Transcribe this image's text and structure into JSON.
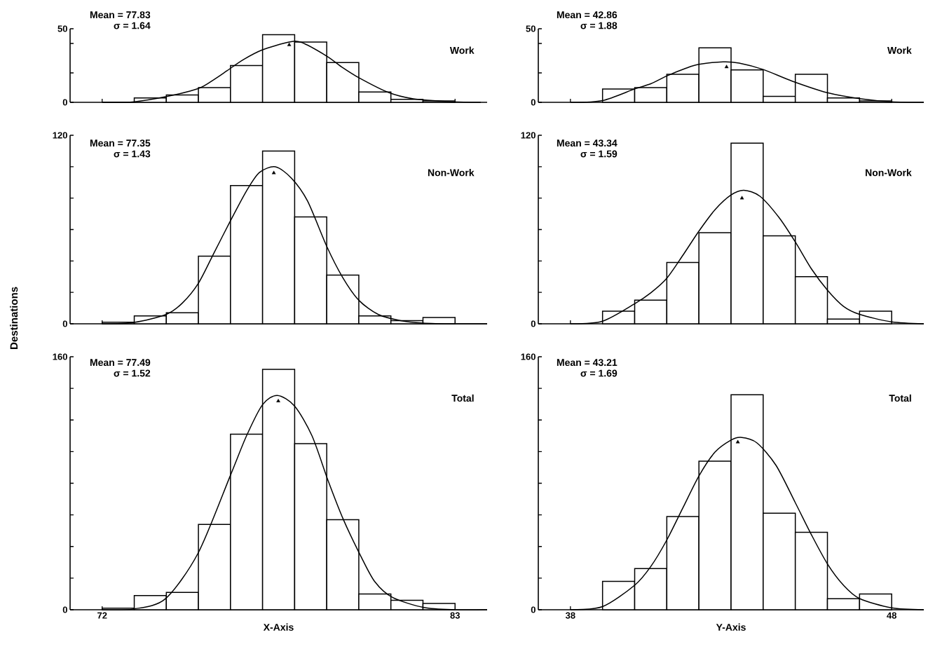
{
  "chart_data": [
    {
      "type": "histogram",
      "title": "Work",
      "annotations": [
        "Mean = 77.83",
        "σ = 1.64"
      ],
      "bins": [
        72,
        73,
        74,
        75,
        76,
        77,
        78,
        79,
        80,
        81,
        82,
        83
      ],
      "values": [
        0,
        3,
        5,
        10,
        25,
        46,
        41,
        27,
        7,
        2,
        1
      ],
      "xlim": [
        71,
        84
      ],
      "xticks": [
        72,
        83
      ],
      "ylim": [
        0,
        50
      ],
      "yticks": [
        0,
        {
          "value": 20,
          "label": null
        },
        {
          "value": 40,
          "label": null
        },
        50
      ],
      "tick_labels": "y",
      "series": [
        {
          "type": "line",
          "color": "#000000",
          "x": [
            72,
            73,
            74,
            75,
            75.5,
            75.9,
            76.4,
            77,
            77.8,
            78.2,
            79,
            79.5,
            80,
            80.9,
            81.7,
            82.9,
            83.8
          ],
          "values": [
            0,
            0.4,
            3.9,
            9.4,
            15.7,
            21.6,
            29,
            35.7,
            40.8,
            40.8,
            31.4,
            23.5,
            16.7,
            6.9,
            2.4,
            0.4,
            0
          ]
        },
        {
          "type": "scatter",
          "color": "#000000",
          "marker": "triangle",
          "x": [
            77.83
          ],
          "values": [
            39
          ]
        }
      ]
    },
    {
      "type": "histogram",
      "title": "Work",
      "annotations": [
        "Mean = 42.86",
        "σ = 1.88"
      ],
      "bins": [
        39,
        40,
        41,
        42,
        43,
        44,
        45,
        46,
        47,
        48
      ],
      "values": [
        9,
        10,
        19,
        37,
        22,
        4,
        19,
        3,
        1
      ],
      "xlim": [
        37,
        49
      ],
      "xticks": [
        38,
        48
      ],
      "ylim": [
        0,
        50
      ],
      "yticks": [
        0,
        {
          "value": 20,
          "label": null
        },
        {
          "value": 40,
          "label": null
        },
        50
      ],
      "tick_labels": "y",
      "series": [
        {
          "type": "line",
          "color": "#000000",
          "x": [
            38,
            39,
            40,
            40.5,
            41,
            41.6,
            42,
            42.75,
            43.25,
            44,
            44.9,
            46,
            47,
            48,
            49
          ],
          "values": [
            0,
            1.2,
            9.1,
            12.6,
            17.9,
            23.2,
            25.8,
            27.5,
            26.7,
            22.3,
            14.4,
            6.5,
            2.5,
            0.4,
            0
          ]
        },
        {
          "type": "scatter",
          "color": "#000000",
          "marker": "triangle",
          "x": [
            42.86
          ],
          "values": [
            24
          ]
        }
      ]
    },
    {
      "type": "histogram",
      "title": "Non-Work",
      "ylabel": "Destinations",
      "annotations": [
        "Mean = 77.35",
        "σ = 1.43"
      ],
      "bins": [
        72,
        73,
        74,
        75,
        76,
        77,
        78,
        79,
        80,
        81,
        82,
        83
      ],
      "values": [
        1,
        5,
        7,
        43,
        88,
        110,
        68,
        31,
        5,
        2,
        4
      ],
      "xlim": [
        71,
        84
      ],
      "xticks": [
        72,
        83
      ],
      "ylim": [
        0,
        120
      ],
      "yticks": [
        0,
        {
          "value": 20,
          "label": null
        },
        {
          "value": 40,
          "label": null
        },
        {
          "value": 60,
          "label": null
        },
        {
          "value": 80,
          "label": null
        },
        {
          "value": 100,
          "label": null
        },
        120
      ],
      "tick_labels": "y",
      "series": [
        {
          "type": "line",
          "color": "#000000",
          "x": [
            72,
            73,
            74,
            74.5,
            75,
            75.5,
            76,
            76.5,
            76.9,
            77.4,
            77.9,
            78.4,
            79,
            79.5,
            80,
            80.6,
            81.3,
            82,
            83,
            84
          ],
          "values": [
            0,
            0.9,
            6,
            13.2,
            25.8,
            45.7,
            65.6,
            84.6,
            96.3,
            99.9,
            92.7,
            78.2,
            49.3,
            29.4,
            15,
            6,
            2,
            0.5,
            0,
            0
          ]
        },
        {
          "type": "scatter",
          "color": "#000000",
          "marker": "triangle",
          "x": [
            77.35
          ],
          "values": [
            96
          ]
        }
      ]
    },
    {
      "type": "histogram",
      "title": "Non-Work",
      "annotations": [
        "Mean = 43.34",
        "σ = 1.59"
      ],
      "bins": [
        39,
        40,
        41,
        42,
        43,
        44,
        45,
        46,
        47,
        48
      ],
      "values": [
        8,
        15,
        39,
        58,
        115,
        56,
        30,
        3,
        8
      ],
      "xlim": [
        37,
        49
      ],
      "xticks": [
        38,
        48
      ],
      "ylim": [
        0,
        120
      ],
      "yticks": [
        0,
        {
          "value": 20,
          "label": null
        },
        {
          "value": 40,
          "label": null
        },
        {
          "value": 60,
          "label": null
        },
        {
          "value": 80,
          "label": null
        },
        {
          "value": 100,
          "label": null
        },
        120
      ],
      "tick_labels": "y",
      "series": [
        {
          "type": "line",
          "color": "#000000",
          "x": [
            38,
            39,
            40,
            40.5,
            41,
            41.5,
            42,
            42.5,
            43,
            43.4,
            43.9,
            44.5,
            45,
            45.5,
            46,
            46.5,
            47,
            48,
            49
          ],
          "values": [
            0,
            1.7,
            12.8,
            19.7,
            29,
            43.6,
            59,
            72.6,
            82,
            85,
            81.2,
            67.5,
            52.1,
            35,
            21.4,
            11.1,
            6,
            1.2,
            0
          ]
        },
        {
          "type": "scatter",
          "color": "#000000",
          "marker": "triangle",
          "x": [
            43.34
          ],
          "values": [
            80
          ]
        }
      ]
    },
    {
      "type": "histogram",
      "title": "Total",
      "xlabel": "X-Axis",
      "annotations": [
        "Mean = 77.49",
        "σ = 1.52"
      ],
      "bins": [
        72,
        73,
        74,
        75,
        76,
        77,
        78,
        79,
        80,
        81,
        82,
        83
      ],
      "values": [
        1,
        9,
        11,
        54,
        111,
        152,
        105,
        57,
        10,
        6,
        4
      ],
      "xlim": [
        71,
        84
      ],
      "xticks": [
        72,
        83
      ],
      "ylim": [
        0,
        160
      ],
      "yticks": [
        0,
        {
          "value": 20,
          "label": null
        },
        {
          "value": 40,
          "label": null
        },
        {
          "value": 60,
          "label": null
        },
        {
          "value": 80,
          "label": null
        },
        {
          "value": 100,
          "label": null
        },
        {
          "value": 120,
          "label": null
        },
        {
          "value": 140,
          "label": null
        },
        160
      ],
      "series": [
        {
          "type": "line",
          "color": "#000000",
          "x": [
            72,
            72.98,
            73.97,
            74.99,
            75.99,
            76.5,
            77,
            77.46,
            78,
            78.54,
            79.04,
            79.52,
            80.06,
            80.5,
            81.05,
            82.03,
            83,
            84
          ],
          "values": [
            0,
            0.5,
            6.9,
            35.8,
            84.6,
            110,
            129.7,
            135.5,
            128.8,
            110,
            81.8,
            57,
            34,
            17.7,
            7.8,
            1.4,
            0,
            0
          ]
        },
        {
          "type": "scatter",
          "color": "#000000",
          "marker": "triangle",
          "x": [
            77.49
          ],
          "values": [
            132
          ]
        }
      ]
    },
    {
      "type": "histogram",
      "title": "Total",
      "xlabel": "Y-Axis",
      "annotations": [
        "Mean = 43.21",
        "σ = 1.69"
      ],
      "bins": [
        39,
        40,
        41,
        42,
        43,
        44,
        45,
        46,
        47,
        48
      ],
      "values": [
        18,
        26,
        59,
        94,
        136,
        61,
        49,
        7,
        10
      ],
      "xlim": [
        37,
        49
      ],
      "xticks": [
        38,
        48
      ],
      "ylim": [
        0,
        160
      ],
      "yticks": [
        0,
        {
          "value": 20,
          "label": null
        },
        {
          "value": 40,
          "label": null
        },
        {
          "value": 60,
          "label": null
        },
        {
          "value": 80,
          "label": null
        },
        {
          "value": 100,
          "label": null
        },
        {
          "value": 120,
          "label": null
        },
        {
          "value": 140,
          "label": null
        },
        160
      ],
      "series": [
        {
          "type": "line",
          "color": "#000000",
          "x": [
            38,
            39,
            40,
            40.5,
            41,
            41.5,
            42,
            42.5,
            43,
            43.3,
            43.8,
            44.4,
            45,
            45.5,
            46,
            46.5,
            47,
            48,
            49
          ],
          "values": [
            0,
            2,
            15.5,
            27.3,
            44.1,
            64.4,
            84.6,
            99.7,
            107.3,
            109,
            105.6,
            91.3,
            67.7,
            47.5,
            29,
            15.5,
            7.1,
            1.2,
            0
          ]
        },
        {
          "type": "scatter",
          "color": "#000000",
          "marker": "triangle",
          "x": [
            43.21
          ],
          "values": [
            106
          ]
        }
      ]
    }
  ]
}
